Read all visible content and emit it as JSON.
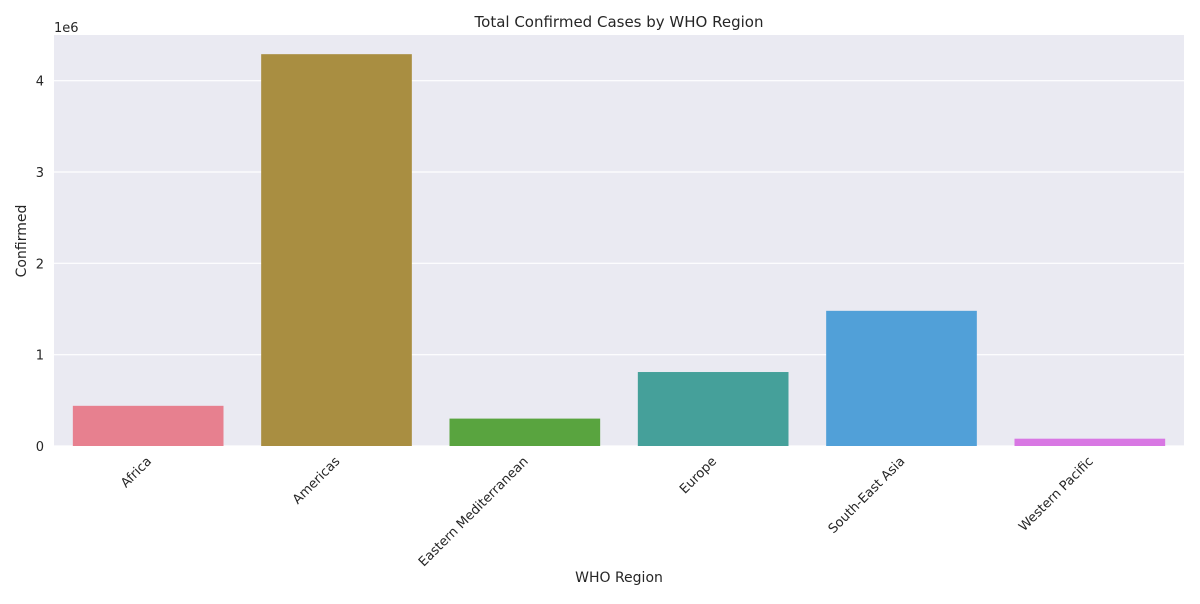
{
  "chart_data": {
    "type": "bar",
    "title": "Total Confirmed Cases by WHO Region",
    "xlabel": "WHO Region",
    "ylabel": "Confirmed",
    "y_scale_label": "1e6",
    "categories": [
      "Africa",
      "Americas",
      "Eastern Mediterranean",
      "Europe",
      "South-East Asia",
      "Western Pacific"
    ],
    "values": [
      440000,
      4290000,
      300000,
      810000,
      1480000,
      80000
    ],
    "colors": [
      "#e7808f",
      "#a98e41",
      "#59a43f",
      "#45a09a",
      "#51a0d8",
      "#d877e3"
    ],
    "ylim": [
      0,
      4500000
    ],
    "yticks": [
      0,
      1000000,
      2000000,
      3000000,
      4000000
    ],
    "ytick_labels": [
      "0",
      "1",
      "2",
      "3",
      "4"
    ],
    "grid": true,
    "background": "#eaeaf2"
  }
}
